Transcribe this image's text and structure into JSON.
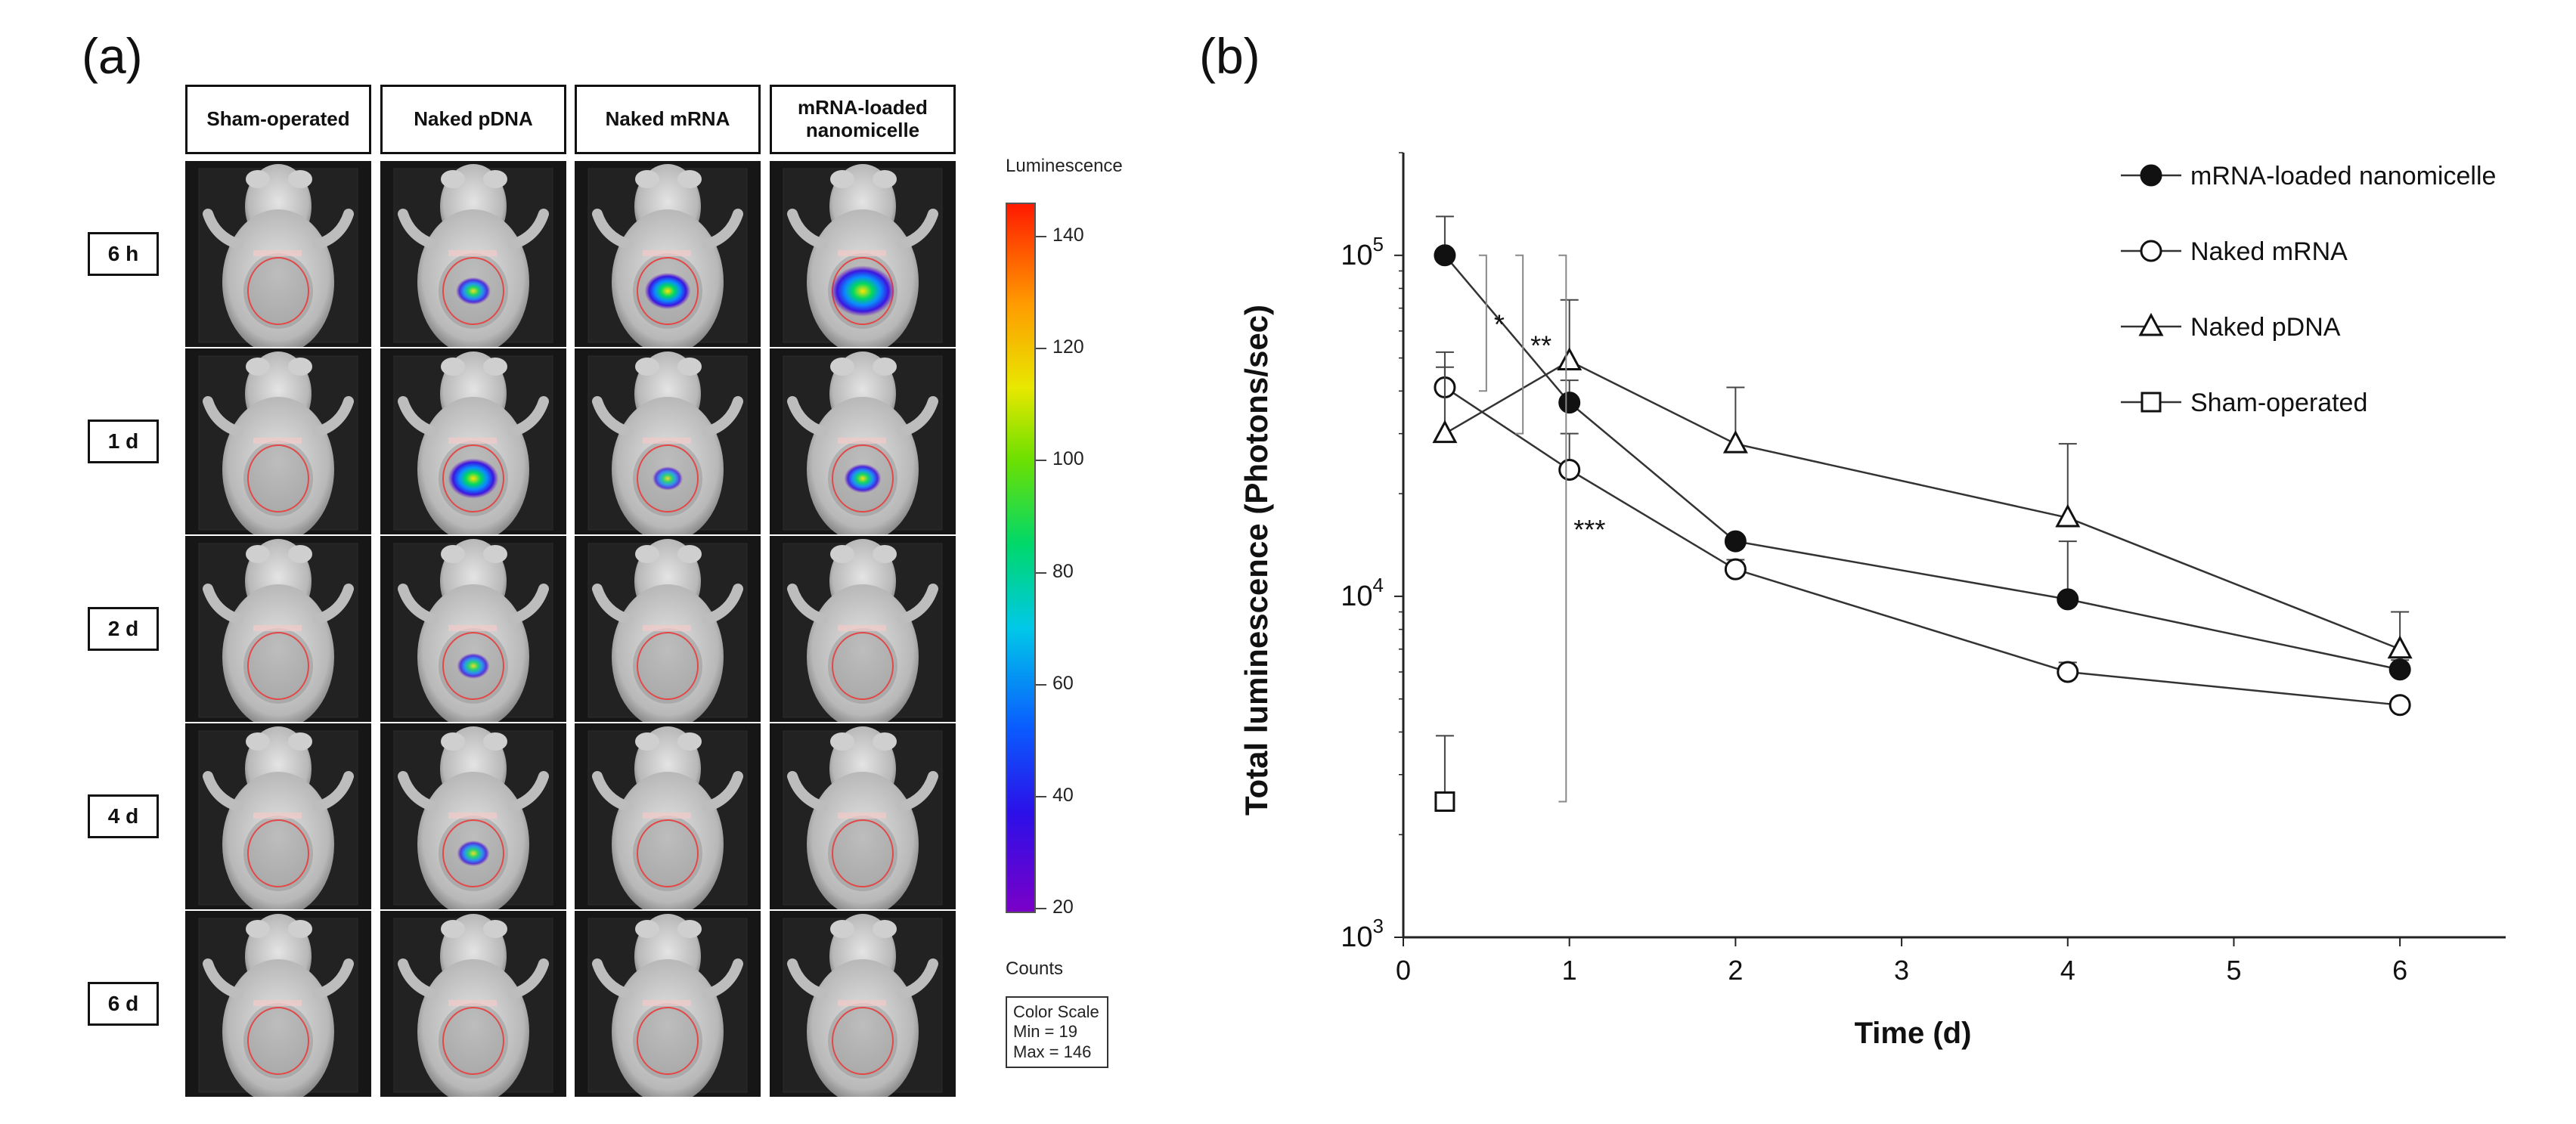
{
  "panels": {
    "a_label": "(a)",
    "b_label": "(b)"
  },
  "imaging": {
    "columns": [
      "Sham-operated",
      "Naked pDNA",
      "Naked mRNA",
      "mRNA-loaded nanomicelle"
    ],
    "rows": [
      "6 h",
      "1 d",
      "2 d",
      "4 d",
      "6 d"
    ],
    "signal_intensity": [
      [
        0,
        0.3,
        0.55,
        0.95
      ],
      [
        0,
        0.65,
        0.2,
        0.35
      ],
      [
        0,
        0.25,
        0,
        0
      ],
      [
        0,
        0.25,
        0,
        0
      ],
      [
        0,
        0,
        0,
        0
      ]
    ],
    "colorbar": {
      "title": "Luminescence",
      "ticks": [
        "140",
        "120",
        "100",
        "80",
        "60",
        "40",
        "20"
      ],
      "tick_values": [
        140,
        120,
        100,
        80,
        60,
        40,
        20
      ],
      "range": [
        19,
        146
      ],
      "units_label": "Counts",
      "scale_title": "Color Scale",
      "min_label": "Min = 19",
      "max_label": "Max = 146"
    }
  },
  "chart_data": {
    "type": "line",
    "xlabel": "Time (d)",
    "ylabel": "Total luminescence (Photons/sec)",
    "yscale": "log",
    "ylim": [
      1000,
      200000
    ],
    "xlim": [
      0,
      6.5
    ],
    "xticks": [
      0,
      1,
      2,
      3,
      4,
      5,
      6
    ],
    "yticks": [
      {
        "value": 1000,
        "base": "10",
        "exp": "3"
      },
      {
        "value": 10000,
        "base": "10",
        "exp": "4"
      },
      {
        "value": 100000,
        "base": "10",
        "exp": "5"
      }
    ],
    "series": [
      {
        "name": "mRNA-loaded nanomicelle",
        "marker": "filled-circle",
        "x": [
          0.25,
          1,
          2,
          4,
          6
        ],
        "values": [
          100000,
          37000,
          14500,
          9800,
          6100
        ],
        "err": [
          130000,
          43000,
          15000,
          14500,
          6500
        ]
      },
      {
        "name": "Naked mRNA",
        "marker": "open-circle",
        "x": [
          0.25,
          1,
          2,
          4,
          6
        ],
        "values": [
          41000,
          23500,
          12000,
          6000,
          4800
        ],
        "err": [
          52000,
          30000,
          12800,
          6400,
          5000
        ]
      },
      {
        "name": "Naked pDNA",
        "marker": "open-triangle",
        "x": [
          0.25,
          1,
          2,
          4,
          6
        ],
        "values": [
          30000,
          49000,
          28000,
          17000,
          7000
        ],
        "err": [
          47000,
          74000,
          41000,
          28000,
          9000
        ]
      },
      {
        "name": "Sham-operated",
        "marker": "open-square",
        "x": [
          0.25
        ],
        "values": [
          2500
        ],
        "err": [
          3900
        ]
      }
    ],
    "annotations": [
      {
        "text": "*",
        "x": 0.5,
        "y1": 40000,
        "y2": 100000
      },
      {
        "text": "**",
        "x": 0.72,
        "y1": 30000,
        "y2": 100000
      },
      {
        "text": "***",
        "x": 0.98,
        "y1": 2500,
        "y2": 100000
      }
    ],
    "legend_position": "top-right"
  }
}
